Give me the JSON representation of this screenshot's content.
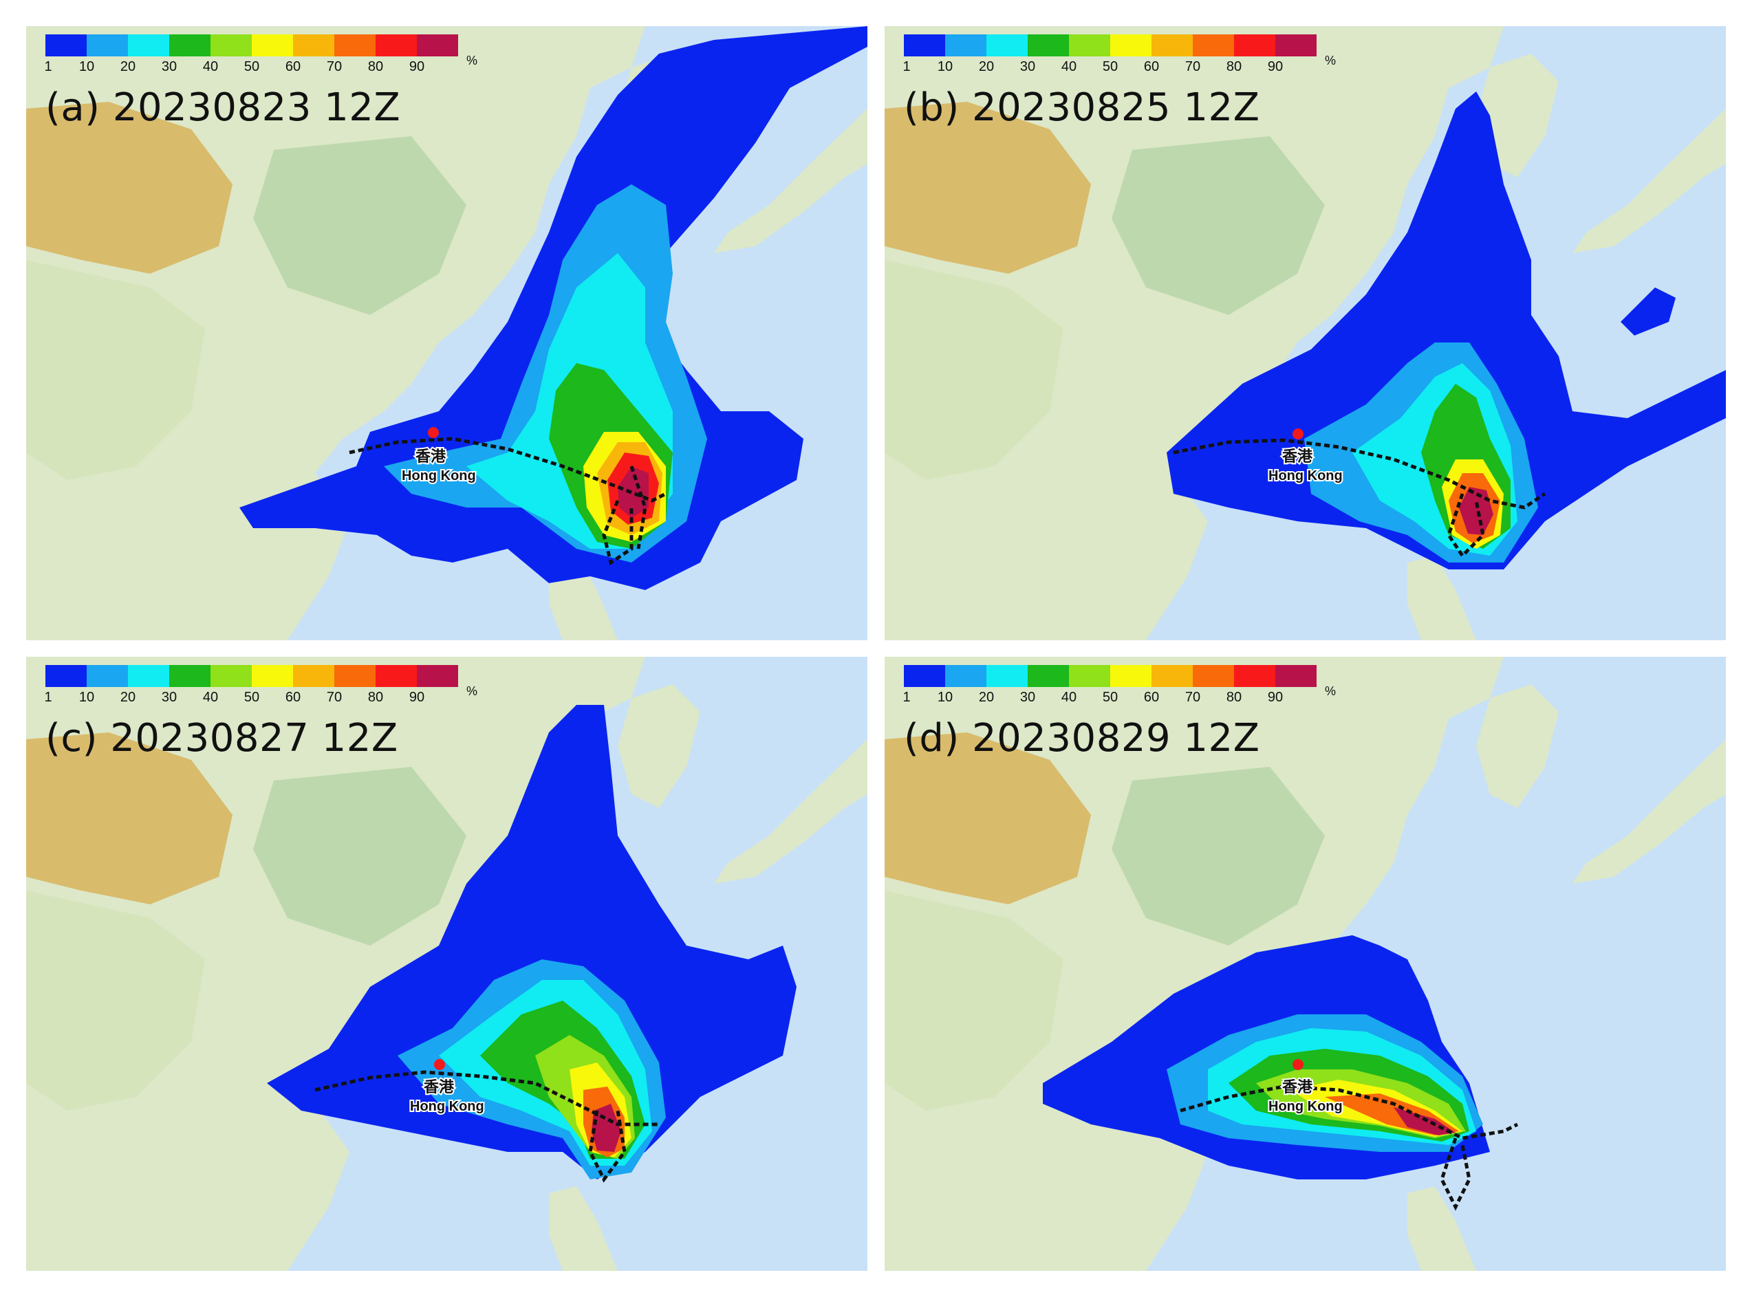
{
  "colorbar": {
    "colors": [
      "#0a24f0",
      "#1aa6f0",
      "#10ecf2",
      "#1cb81c",
      "#90e01a",
      "#f8f80a",
      "#f8b60a",
      "#f86a0a",
      "#f81a1a",
      "#b8124a"
    ],
    "ticks": [
      "1",
      "10",
      "20",
      "30",
      "40",
      "50",
      "60",
      "70",
      "80",
      "90"
    ],
    "unit": "%"
  },
  "map_colors": {
    "ocean": "#c8e1f7",
    "land_low": "#dce8c8",
    "land_mid": "#d6e4bc",
    "land_high": "#d8b35c",
    "land_green": "#b4d3a4",
    "track": "#111111",
    "hk_marker": "#f21a1a"
  },
  "location": {
    "name_zh": "香港",
    "name_en": "Hong Kong"
  },
  "panels": [
    {
      "id": "a",
      "title": "(a) 20230823 12Z"
    },
    {
      "id": "b",
      "title": "(b) 20230825 12Z"
    },
    {
      "id": "c",
      "title": "(c) 20230827 12Z"
    },
    {
      "id": "d",
      "title": "(d) 20230829 12Z"
    }
  ]
}
